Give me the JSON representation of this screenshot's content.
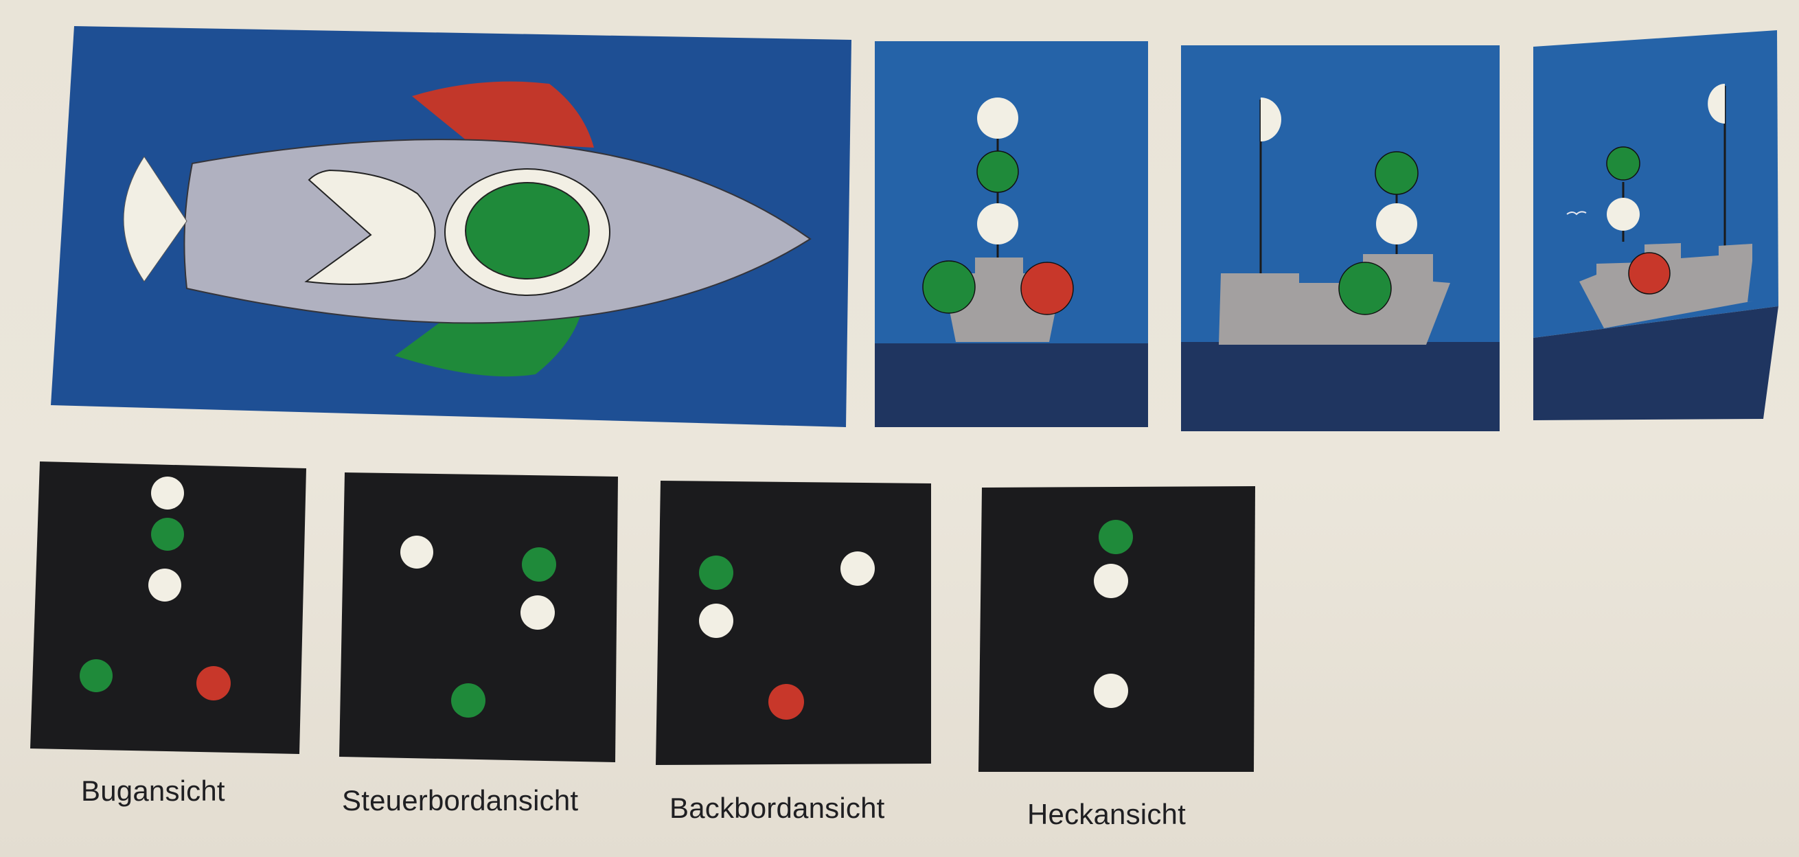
{
  "colors": {
    "page": "#ebe6db",
    "sky": "#2563a8",
    "sky_dark": "#1e4f94",
    "sea": "#1f3560",
    "hull": "#a3a0a0",
    "hull_light": "#b0b1c0",
    "light_white": "#f2efe4",
    "light_green": "#1f8a3a",
    "light_red": "#c8372a",
    "night": "#1b1b1d",
    "mast": "#1a1a1a"
  },
  "captions": {
    "bow": "Bugansicht",
    "starboard": "Steuerbordansicht",
    "port": "Backbordansicht",
    "stern": "Heckansicht"
  },
  "night_views": [
    {
      "key": "bow",
      "lights": [
        "white",
        "green",
        "white",
        "green",
        "red"
      ]
    },
    {
      "key": "starboard",
      "lights": [
        "white",
        "green",
        "white",
        "green"
      ]
    },
    {
      "key": "port",
      "lights": [
        "green",
        "white",
        "white",
        "red"
      ]
    },
    {
      "key": "stern",
      "lights": [
        "green",
        "white",
        "white"
      ]
    }
  ]
}
